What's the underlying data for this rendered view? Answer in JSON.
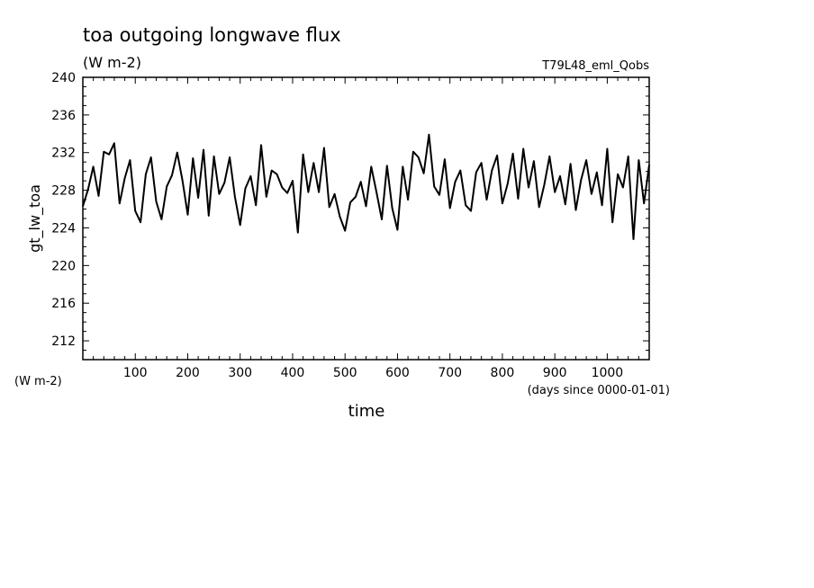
{
  "chart_data": {
    "type": "line",
    "title": "toa outgoing longwave flux",
    "subtitle": "(W m-2)",
    "run_label": "T79L48_eml_Qobs",
    "xlabel": "time",
    "x_units": "(days since 0000-01-01)",
    "ylabel": "gt_lw_toa",
    "y_units": "(W m-2)",
    "xlim": [
      0,
      1080
    ],
    "ylim": [
      210,
      240
    ],
    "x_ticks": [
      100,
      200,
      300,
      400,
      500,
      600,
      700,
      800,
      900,
      1000
    ],
    "y_ticks": [
      212,
      216,
      220,
      224,
      228,
      232,
      236,
      240
    ],
    "x_tick_labels": [
      "100",
      "200",
      "300",
      "400",
      "500",
      "600",
      "700",
      "800",
      "900",
      "1000"
    ],
    "y_tick_labels": [
      "212",
      "216",
      "220",
      "224",
      "228",
      "232",
      "236",
      "240"
    ],
    "grid": false,
    "legend": "none",
    "line_color": "#000000",
    "series": [
      {
        "x": [
          0,
          10,
          20,
          30,
          40,
          50,
          60,
          70,
          80,
          90,
          100,
          110,
          120,
          130,
          140,
          150,
          160,
          170,
          180,
          190,
          200,
          210,
          220,
          230,
          240,
          250,
          260,
          270,
          280,
          290,
          300,
          310,
          320,
          330,
          340,
          350,
          360,
          370,
          380,
          390,
          400,
          410,
          420,
          430,
          440,
          450,
          460,
          470,
          480,
          490,
          500,
          510,
          520,
          530,
          540,
          550,
          560,
          570,
          580,
          590,
          600,
          610,
          620,
          630,
          640,
          650,
          660,
          670,
          680,
          690,
          700,
          710,
          720,
          730,
          740,
          750,
          760,
          770,
          780,
          790,
          800,
          810,
          820,
          830,
          840,
          850,
          860,
          870,
          880,
          890,
          900,
          910,
          920,
          930,
          940,
          950,
          960,
          970,
          980,
          990,
          1000,
          1010,
          1020,
          1030,
          1040,
          1050,
          1060,
          1070,
          1080
        ],
        "values": [
          226.3,
          228.1,
          230.5,
          227.4,
          232.1,
          231.8,
          233.0,
          226.6,
          229.3,
          231.2,
          225.8,
          224.6,
          229.7,
          231.5,
          226.8,
          224.9,
          228.4,
          229.6,
          232.0,
          229.0,
          225.4,
          231.4,
          227.2,
          232.3,
          225.3,
          231.6,
          227.6,
          228.8,
          231.5,
          227.3,
          224.3,
          228.2,
          229.5,
          226.4,
          232.8,
          227.3,
          230.1,
          229.7,
          228.3,
          227.7,
          229.0,
          223.5,
          231.8,
          227.8,
          230.9,
          227.8,
          232.5,
          226.2,
          227.6,
          225.2,
          223.7,
          226.7,
          227.3,
          228.9,
          226.3,
          230.5,
          227.8,
          224.9,
          230.6,
          226.1,
          223.8,
          230.5,
          227.0,
          232.1,
          231.5,
          229.8,
          233.9,
          228.4,
          227.5,
          231.3,
          226.1,
          228.9,
          230.1,
          226.4,
          225.8,
          229.9,
          230.9,
          227.0,
          230.1,
          231.7,
          226.6,
          228.7,
          231.9,
          227.1,
          232.4,
          228.3,
          231.1,
          226.2,
          228.6,
          231.6,
          227.8,
          229.5,
          226.5,
          230.8,
          225.9,
          229.1,
          231.2,
          227.6,
          229.9,
          226.4,
          232.4,
          224.6,
          229.7,
          228.3,
          231.6,
          222.8,
          231.2,
          226.6,
          230.7
        ]
      }
    ]
  }
}
